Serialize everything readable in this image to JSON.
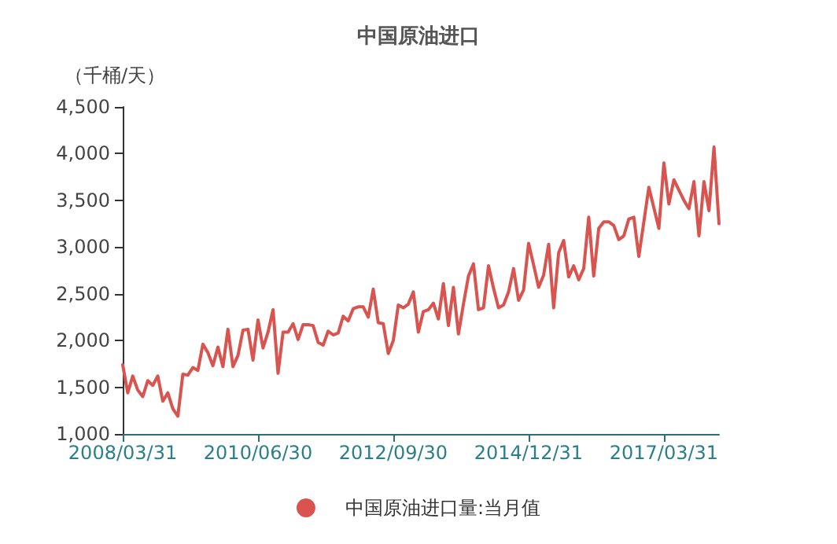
{
  "chart_data": {
    "type": "line",
    "title": "中国原油进口",
    "ylabel": "（千桶/天）",
    "categories": [
      "2008/03/31",
      null,
      null,
      null,
      null,
      null,
      null,
      null,
      null,
      null,
      null,
      null,
      null,
      null,
      null,
      null,
      null,
      null,
      null,
      null,
      null,
      null,
      null,
      null,
      null,
      null,
      null,
      "2010/06/30",
      null,
      null,
      null,
      null,
      null,
      null,
      null,
      null,
      null,
      null,
      null,
      null,
      null,
      null,
      null,
      null,
      null,
      null,
      null,
      null,
      null,
      null,
      null,
      null,
      null,
      null,
      "2012/09/30",
      null,
      null,
      null,
      null,
      null,
      null,
      null,
      null,
      null,
      null,
      null,
      null,
      null,
      null,
      null,
      null,
      null,
      null,
      null,
      null,
      null,
      null,
      null,
      null,
      null,
      null,
      "2014/12/31",
      null,
      null,
      null,
      null,
      null,
      null,
      null,
      null,
      null,
      null,
      null,
      null,
      null,
      null,
      null,
      null,
      null,
      null,
      null,
      null,
      null,
      null,
      null,
      null,
      null,
      null,
      "2017/03/31",
      null,
      null,
      null,
      null,
      null,
      null,
      null,
      null,
      null,
      null,
      null
    ],
    "series": [
      {
        "name": "中国原油进口量:当月值",
        "color": "#d9534f",
        "values": [
          1740,
          1440,
          1620,
          1470,
          1400,
          1570,
          1520,
          1620,
          1350,
          1440,
          1270,
          1190,
          1640,
          1630,
          1710,
          1680,
          1960,
          1870,
          1730,
          1930,
          1720,
          2120,
          1720,
          1840,
          2110,
          2120,
          1790,
          2220,
          1920,
          2090,
          2330,
          1650,
          2090,
          2090,
          2180,
          2010,
          2170,
          2170,
          2160,
          1980,
          1950,
          2100,
          2060,
          2080,
          2260,
          2210,
          2340,
          2360,
          2360,
          2250,
          2550,
          2190,
          2180,
          1860,
          2000,
          2380,
          2350,
          2390,
          2520,
          2090,
          2310,
          2330,
          2400,
          2230,
          2610,
          2160,
          2570,
          2070,
          2390,
          2690,
          2820,
          2330,
          2350,
          2800,
          2560,
          2350,
          2380,
          2520,
          2770,
          2430,
          2540,
          3040,
          2810,
          2570,
          2700,
          3030,
          2350,
          2940,
          3070,
          2680,
          2800,
          2650,
          2770,
          3320,
          2690,
          3200,
          3270,
          3270,
          3230,
          3080,
          3120,
          3300,
          3320,
          2900,
          3270,
          3640,
          3420,
          3200,
          3900,
          3460,
          3720,
          3610,
          3500,
          3410,
          3700,
          3120,
          3700,
          3390,
          4070,
          3250
        ]
      }
    ],
    "ylim": [
      1000,
      4500
    ],
    "yticks": [
      {
        "value": 1000,
        "label": "1,000"
      },
      {
        "value": 1500,
        "label": "1,500"
      },
      {
        "value": 2000,
        "label": "2,000"
      },
      {
        "value": 2500,
        "label": "2,500"
      },
      {
        "value": 3000,
        "label": "3,000"
      },
      {
        "value": 3500,
        "label": "3,500"
      },
      {
        "value": 4000,
        "label": "4,000"
      },
      {
        "value": 4500,
        "label": "4,500"
      }
    ],
    "grid": false,
    "legend": "bottom",
    "marker": "none",
    "line_style": "solid"
  }
}
